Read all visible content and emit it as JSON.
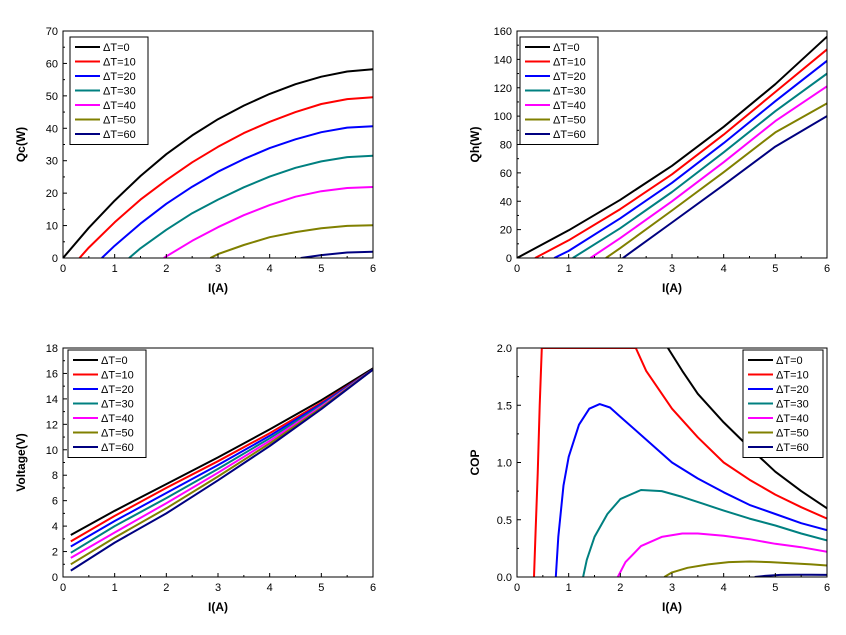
{
  "series_colors": {
    "dT0": "#000000",
    "dT10": "#ff0000",
    "dT20": "#0000ff",
    "dT30": "#008080",
    "dT40": "#ff00ff",
    "dT50": "#808000",
    "dT60": "#000080"
  },
  "chart_data": [
    {
      "type": "line",
      "xlabel": "I(A)",
      "ylabel": "Qc(W)",
      "xlim": [
        0,
        6
      ],
      "ylim": [
        0,
        70
      ],
      "xticks": [
        "0",
        "1",
        "2",
        "3",
        "4",
        "5",
        "6"
      ],
      "yticks": [
        "0",
        "10",
        "20",
        "30",
        "40",
        "50",
        "60",
        "70"
      ],
      "legend_position": "top-left",
      "series": [
        {
          "name": "ΔT=0",
          "color_key": "dT0",
          "x": [
            0,
            0.5,
            1,
            1.5,
            2,
            2.5,
            3,
            3.5,
            4,
            4.5,
            5,
            5.5,
            6
          ],
          "y": [
            0,
            9.3,
            17.7,
            25.3,
            32,
            37.8,
            42.8,
            47.0,
            50.6,
            53.6,
            55.9,
            57.5,
            58.2
          ]
        },
        {
          "name": "ΔT=10",
          "color_key": "dT10",
          "x": [
            0.32,
            0.5,
            1,
            1.5,
            2,
            2.5,
            3,
            3.5,
            4,
            4.5,
            5,
            5.5,
            6
          ],
          "y": [
            0,
            3.2,
            11.0,
            18.0,
            24.0,
            29.5,
            34.3,
            38.5,
            42.0,
            45.0,
            47.5,
            49.0,
            49.6
          ]
        },
        {
          "name": "ΔT=20",
          "color_key": "dT20",
          "x": [
            0.75,
            1,
            1.5,
            2,
            2.5,
            3,
            3.5,
            4,
            4.5,
            5,
            5.5,
            6
          ],
          "y": [
            0,
            3.8,
            10.6,
            16.7,
            22.0,
            26.6,
            30.5,
            33.9,
            36.6,
            38.8,
            40.2,
            40.6
          ]
        },
        {
          "name": "ΔT=30",
          "color_key": "dT30",
          "x": [
            1.28,
            1.5,
            2,
            2.5,
            3,
            3.5,
            4,
            4.5,
            5,
            5.5,
            6
          ],
          "y": [
            0,
            3.0,
            8.7,
            13.8,
            18.0,
            21.8,
            25.1,
            27.8,
            29.8,
            31.1,
            31.5
          ]
        },
        {
          "name": "ΔT=40",
          "color_key": "dT40",
          "x": [
            1.95,
            2,
            2.5,
            3,
            3.5,
            4,
            4.5,
            5,
            5.5,
            6
          ],
          "y": [
            0,
            0.5,
            5.3,
            9.5,
            13.2,
            16.3,
            18.9,
            20.6,
            21.6,
            21.9
          ]
        },
        {
          "name": "ΔT=50",
          "color_key": "dT50",
          "x": [
            2.85,
            3,
            3.5,
            4,
            4.5,
            5,
            5.5,
            6
          ],
          "y": [
            0,
            1.2,
            4.0,
            6.4,
            8.0,
            9.2,
            9.9,
            10.1
          ]
        },
        {
          "name": "ΔT=60",
          "color_key": "dT60",
          "x": [
            4.6,
            5,
            5.5,
            6
          ],
          "y": [
            0,
            0.9,
            1.7,
            1.9
          ]
        }
      ]
    },
    {
      "type": "line",
      "xlabel": "I(A)",
      "ylabel": "Qh(W)",
      "xlim": [
        0,
        6
      ],
      "ylim": [
        0,
        160
      ],
      "xticks": [
        "0",
        "1",
        "2",
        "3",
        "4",
        "5",
        "6"
      ],
      "yticks": [
        "0",
        "20",
        "40",
        "60",
        "80",
        "100",
        "120",
        "140",
        "160"
      ],
      "legend_position": "top-left",
      "series": [
        {
          "name": "ΔT=0",
          "color_key": "dT0",
          "x": [
            0,
            1,
            2,
            3,
            4,
            5,
            6
          ],
          "y": [
            0,
            19.5,
            41.0,
            65.0,
            92.5,
            122.5,
            156
          ]
        },
        {
          "name": "ΔT=10",
          "color_key": "dT10",
          "x": [
            0.35,
            1,
            2,
            3,
            4,
            5,
            6
          ],
          "y": [
            0,
            12.5,
            34.5,
            59.0,
            87.0,
            117.0,
            147
          ]
        },
        {
          "name": "ΔT=20",
          "color_key": "dT20",
          "x": [
            0.72,
            1,
            2,
            3,
            4,
            5,
            6
          ],
          "y": [
            0,
            5.0,
            28.0,
            53.0,
            81.0,
            110.5,
            139
          ]
        },
        {
          "name": "ΔT=30",
          "color_key": "dT30",
          "x": [
            1.08,
            2,
            3,
            4,
            5,
            6
          ],
          "y": [
            0,
            21.0,
            46.5,
            74.5,
            103.5,
            130
          ]
        },
        {
          "name": "ΔT=40",
          "color_key": "dT40",
          "x": [
            1.42,
            2,
            3,
            4,
            5,
            6
          ],
          "y": [
            0,
            14.0,
            40.0,
            67.5,
            96.5,
            121
          ]
        },
        {
          "name": "ΔT=50",
          "color_key": "dT50",
          "x": [
            1.72,
            2,
            3,
            4,
            5,
            6
          ],
          "y": [
            0,
            7.0,
            33.5,
            60.5,
            88.5,
            109
          ]
        },
        {
          "name": "ΔT=60",
          "color_key": "dT60",
          "x": [
            2.05,
            3,
            4,
            5,
            6
          ],
          "y": [
            0,
            25.0,
            51.5,
            78.5,
            100
          ]
        }
      ]
    },
    {
      "type": "line",
      "xlabel": "I(A)",
      "ylabel": "Voltage(V)",
      "xlim": [
        0,
        6
      ],
      "ylim": [
        0,
        18
      ],
      "xticks": [
        "0",
        "1",
        "2",
        "3",
        "4",
        "5",
        "6"
      ],
      "yticks": [
        "0",
        "2",
        "4",
        "6",
        "8",
        "10",
        "12",
        "14",
        "16",
        "18"
      ],
      "legend_position": "top-left",
      "series": [
        {
          "name": "ΔT=0",
          "color_key": "dT0",
          "x": [
            0.15,
            1,
            2,
            3,
            4,
            5,
            6
          ],
          "y": [
            3.3,
            5.2,
            7.3,
            9.4,
            11.6,
            13.9,
            16.4
          ]
        },
        {
          "name": "ΔT=10",
          "color_key": "dT10",
          "x": [
            0.15,
            1,
            2,
            3,
            4,
            5,
            6
          ],
          "y": [
            2.8,
            4.8,
            7.0,
            9.1,
            11.3,
            13.7,
            16.3
          ]
        },
        {
          "name": "ΔT=20",
          "color_key": "dT20",
          "x": [
            0.15,
            1,
            2,
            3,
            4,
            5,
            6
          ],
          "y": [
            2.4,
            4.4,
            6.6,
            8.8,
            11.1,
            13.6,
            16.3
          ]
        },
        {
          "name": "ΔT=30",
          "color_key": "dT30",
          "x": [
            0.15,
            1,
            2,
            3,
            4,
            5,
            6
          ],
          "y": [
            1.9,
            4.0,
            6.2,
            8.5,
            10.9,
            13.5,
            16.3
          ]
        },
        {
          "name": "ΔT=40",
          "color_key": "dT40",
          "x": [
            0.15,
            1,
            2,
            3,
            4,
            5,
            6
          ],
          "y": [
            1.5,
            3.5,
            5.8,
            8.2,
            10.7,
            13.4,
            16.3
          ]
        },
        {
          "name": "ΔT=50",
          "color_key": "dT50",
          "x": [
            0.15,
            1,
            2,
            3,
            4,
            5,
            6
          ],
          "y": [
            1.0,
            3.1,
            5.4,
            7.9,
            10.5,
            13.3,
            16.3
          ]
        },
        {
          "name": "ΔT=60",
          "color_key": "dT60",
          "x": [
            0.15,
            1,
            2,
            3,
            4,
            5,
            6
          ],
          "y": [
            0.5,
            2.7,
            5.0,
            7.6,
            10.3,
            13.2,
            16.3
          ]
        }
      ]
    },
    {
      "type": "line",
      "xlabel": "I(A)",
      "ylabel": "COP",
      "xlim": [
        0,
        6
      ],
      "ylim": [
        0,
        2.0
      ],
      "xticks": [
        "0",
        "1",
        "2",
        "3",
        "4",
        "5",
        "6"
      ],
      "yticks": [
        "0.0",
        "0.5",
        "1.0",
        "1.5",
        "2.0"
      ],
      "legend_position": "top-right",
      "series": [
        {
          "name": "ΔT=0",
          "color_key": "dT0",
          "x": [
            2.92,
            3.2,
            3.5,
            4,
            4.5,
            5,
            5.5,
            6
          ],
          "y": [
            2.0,
            1.8,
            1.6,
            1.35,
            1.13,
            0.92,
            0.75,
            0.6
          ]
        },
        {
          "name": "ΔT=10",
          "color_key": "dT10",
          "x": [
            0.33,
            0.36,
            0.4,
            0.44,
            0.48,
            2.3,
            2.5,
            3,
            3.5,
            4,
            4.5,
            5,
            5.5,
            6
          ],
          "y": [
            0,
            0.4,
            0.9,
            1.5,
            2.0,
            2.0,
            1.8,
            1.47,
            1.22,
            1.0,
            0.85,
            0.72,
            0.61,
            0.51
          ]
        },
        {
          "name": "ΔT=20",
          "color_key": "dT20",
          "x": [
            0.75,
            0.8,
            0.9,
            1.0,
            1.2,
            1.4,
            1.6,
            1.8,
            2,
            2.5,
            3,
            3.5,
            4,
            4.5,
            5,
            5.5,
            6
          ],
          "y": [
            0,
            0.35,
            0.8,
            1.05,
            1.33,
            1.47,
            1.51,
            1.48,
            1.4,
            1.2,
            1.0,
            0.86,
            0.74,
            0.63,
            0.55,
            0.47,
            0.41
          ]
        },
        {
          "name": "ΔT=30",
          "color_key": "dT30",
          "x": [
            1.28,
            1.35,
            1.5,
            1.75,
            2,
            2.4,
            2.8,
            3.2,
            3.6,
            4,
            4.5,
            5,
            5.5,
            6
          ],
          "y": [
            0,
            0.15,
            0.35,
            0.55,
            0.68,
            0.76,
            0.75,
            0.7,
            0.64,
            0.58,
            0.51,
            0.45,
            0.38,
            0.32
          ]
        },
        {
          "name": "ΔT=40",
          "color_key": "dT40",
          "x": [
            1.95,
            2.1,
            2.4,
            2.8,
            3.2,
            3.5,
            4,
            4.5,
            5,
            5.5,
            6
          ],
          "y": [
            0,
            0.13,
            0.27,
            0.35,
            0.38,
            0.38,
            0.36,
            0.33,
            0.29,
            0.26,
            0.22
          ]
        },
        {
          "name": "ΔT=50",
          "color_key": "dT50",
          "x": [
            2.85,
            3.0,
            3.3,
            3.7,
            4.1,
            4.5,
            4.9,
            5.3,
            5.7,
            6
          ],
          "y": [
            0,
            0.04,
            0.08,
            0.11,
            0.13,
            0.135,
            0.13,
            0.12,
            0.11,
            0.1
          ]
        },
        {
          "name": "ΔT=60",
          "color_key": "dT60",
          "x": [
            4.6,
            4.8,
            5.1,
            5.4,
            5.7,
            6
          ],
          "y": [
            0,
            0.01,
            0.018,
            0.02,
            0.02,
            0.018
          ]
        }
      ]
    }
  ]
}
